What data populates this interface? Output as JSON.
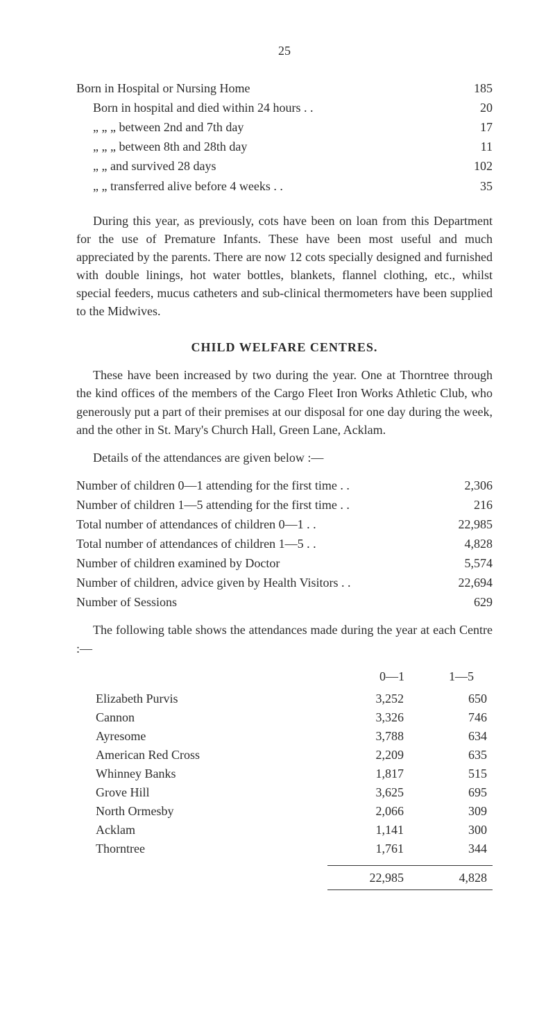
{
  "page": {
    "number": "25",
    "background_color": "#ffffff",
    "text_color": "#2a2a2a",
    "font_family": "Times New Roman",
    "base_fontsize_pt": 13
  },
  "hospital": {
    "main_line": {
      "label": "Born in Hospital or Nursing Home",
      "value": "185"
    },
    "sub_lines": [
      {
        "label": "Born in hospital and died within 24 hours . .",
        "value": "20"
      },
      {
        "label": "„       „       „   between 2nd and 7th day",
        "value": "17"
      },
      {
        "label": "„       „       „   between 8th and 28th day",
        "value": "11"
      },
      {
        "label": "„       „   and survived 28 days",
        "value": "102"
      },
      {
        "label": "„       „   transferred alive before 4 weeks . .",
        "value": "35"
      }
    ]
  },
  "para1": "During this year, as previously, cots have been on loan from this Department for the use of Premature Infants. These have been most useful and much appreciated by the parents. There are now 12 cots specially designed and furnished with double linings, hot water bottles, blankets, flannel clothing, etc., whilst special feeders, mucus catheters and sub-clinical thermometers have been supplied to the Midwives.",
  "section_title": "CHILD WELFARE CENTRES.",
  "para2": "These have been increased by two during the year. One at Thorntree through the kind offices of the members of the Cargo Fleet Iron Works Athletic Club, who generously put a part of their premises at our disposal for one day during the week, and the other in St. Mary's Church Hall, Green Lane, Acklam.",
  "details_line": "Details of the attendances are given below :—",
  "stats": [
    {
      "label": "Number of children 0—1 attending for the first time . .",
      "value": "2,306"
    },
    {
      "label": "Number of children 1—5 attending for the first time . .",
      "value": "216"
    },
    {
      "label": "Total number of attendances of children 0—1 . .",
      "value": "22,985"
    },
    {
      "label": "Total number of attendances of children 1—5 . .",
      "value": "4,828"
    },
    {
      "label": "Number of children examined by Doctor",
      "value": "5,574"
    },
    {
      "label": "Number of children, advice given by Health Visitors . .",
      "value": "22,694"
    },
    {
      "label": "Number of Sessions",
      "value": "629"
    }
  ],
  "para3": "The following table shows the attendances made during the year at each Centre :—",
  "table": {
    "headers": [
      "0—1",
      "1—5"
    ],
    "rows": [
      {
        "name": "Elizabeth Purvis",
        "c1": "3,252",
        "c2": "650"
      },
      {
        "name": "Cannon",
        "c1": "3,326",
        "c2": "746"
      },
      {
        "name": "Ayresome",
        "c1": "3,788",
        "c2": "634"
      },
      {
        "name": "American Red Cross",
        "c1": "2,209",
        "c2": "635"
      },
      {
        "name": "Whinney Banks",
        "c1": "1,817",
        "c2": "515"
      },
      {
        "name": "Grove Hill",
        "c1": "3,625",
        "c2": "695"
      },
      {
        "name": "North Ormesby",
        "c1": "2,066",
        "c2": "309"
      },
      {
        "name": "Acklam",
        "c1": "1,141",
        "c2": "300"
      },
      {
        "name": "Thorntree",
        "c1": "1,761",
        "c2": "344"
      }
    ],
    "totals": {
      "c1": "22,985",
      "c2": "4,828"
    }
  }
}
